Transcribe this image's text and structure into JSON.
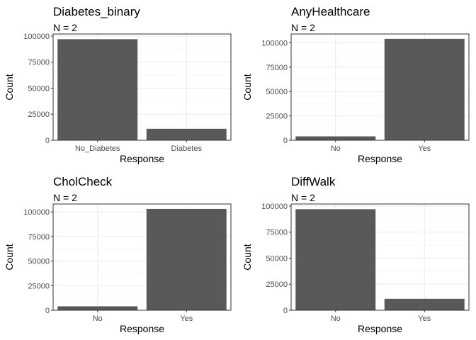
{
  "chart_data": [
    {
      "type": "bar",
      "title": "Diabetes_binary",
      "subtitle": "N = 2",
      "xlabel": "Response",
      "ylabel": "Count",
      "categories": [
        "No_Diabetes",
        "Diabetes"
      ],
      "values": [
        97000,
        11000
      ],
      "yticks": [
        0,
        25000,
        50000,
        75000,
        100000
      ],
      "ylim": [
        0,
        102000
      ],
      "grid": true,
      "bar_color": "#595959"
    },
    {
      "type": "bar",
      "title": "AnyHealthcare",
      "subtitle": "N = 2",
      "xlabel": "Response",
      "ylabel": "Count",
      "categories": [
        "No",
        "Yes"
      ],
      "values": [
        4000,
        104000
      ],
      "yticks": [
        0,
        25000,
        50000,
        75000,
        100000
      ],
      "ylim": [
        0,
        109000
      ],
      "grid": true,
      "bar_color": "#595959"
    },
    {
      "type": "bar",
      "title": "CholCheck",
      "subtitle": "N = 2",
      "xlabel": "Response",
      "ylabel": "Count",
      "categories": [
        "No",
        "Yes"
      ],
      "values": [
        4000,
        103000
      ],
      "yticks": [
        0,
        25000,
        50000,
        75000,
        100000
      ],
      "ylim": [
        0,
        108000
      ],
      "grid": true,
      "bar_color": "#595959"
    },
    {
      "type": "bar",
      "title": "DiffWalk",
      "subtitle": "N = 2",
      "xlabel": "Response",
      "ylabel": "Count",
      "categories": [
        "No",
        "Yes"
      ],
      "values": [
        97000,
        11000
      ],
      "yticks": [
        0,
        25000,
        50000,
        75000,
        100000
      ],
      "ylim": [
        0,
        102000
      ],
      "grid": true,
      "bar_color": "#595959"
    }
  ]
}
